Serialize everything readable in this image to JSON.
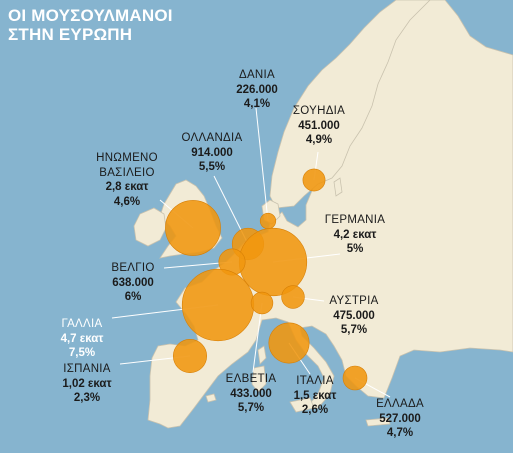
{
  "title_lines": [
    "ΟΙ ΜΟΥΣΟΥΛΜΑΝΟΙ",
    "ΣΤΗΝ ΕΥΡΩΠΗ"
  ],
  "colors": {
    "sea": "#86b4cf",
    "land": "#f2ebd6",
    "border": "#c9c2ae",
    "bubble": "#f0960f",
    "leader": "#ffffff"
  },
  "countries": [
    {
      "id": "denmark",
      "name": "ΔΑΝΙΑ",
      "value": "226.000",
      "percent": "4,1%",
      "population": 226000
    },
    {
      "id": "sweden",
      "name": "ΣΟΥΗΔΙΑ",
      "value": "451.000",
      "percent": "4,9%",
      "population": 451000
    },
    {
      "id": "netherlands",
      "name": "ΟΛΛΑΝΔΙΑ",
      "value": "914.000",
      "percent": "5,5%",
      "population": 914000
    },
    {
      "id": "uk",
      "name_lines": [
        "ΗΝΩΜΕΝΟ",
        "ΒΑΣΙΛΕΙΟ"
      ],
      "value": "2,8 εκατ",
      "percent": "4,6%",
      "population": 2800000
    },
    {
      "id": "germany",
      "name": "ΓΕΡΜΑΝΙΑ",
      "value": "4,2 εκατ",
      "percent": "5%",
      "population": 4200000
    },
    {
      "id": "belgium",
      "name": "ΒΕΛΓΙΟ",
      "value": "638.000",
      "percent": "6%",
      "population": 638000
    },
    {
      "id": "austria",
      "name": "ΑΥΣΤΡΙΑ",
      "value": "475.000",
      "percent": "5,7%",
      "population": 475000
    },
    {
      "id": "france",
      "name": "ΓΑΛΛΙΑ",
      "value": "4,7 εκατ",
      "percent": "7,5%",
      "population": 4700000
    },
    {
      "id": "spain",
      "name": "ΙΣΠΑΝΙΑ",
      "value": "1,02 εκατ",
      "percent": "2,3%",
      "population": 1020000
    },
    {
      "id": "switzerland",
      "name": "ΕΛΒΕΤΙΑ",
      "value": "433.000",
      "percent": "5,7%",
      "population": 433000
    },
    {
      "id": "italy",
      "name": "ΙΤΑΛΙΑ",
      "value": "1,5 εκατ",
      "percent": "2,6%",
      "population": 1500000
    },
    {
      "id": "greece",
      "name": "ΕΛΛΑΔΑ",
      "value": "527.000",
      "percent": "4,7%",
      "population": 527000
    }
  ]
}
